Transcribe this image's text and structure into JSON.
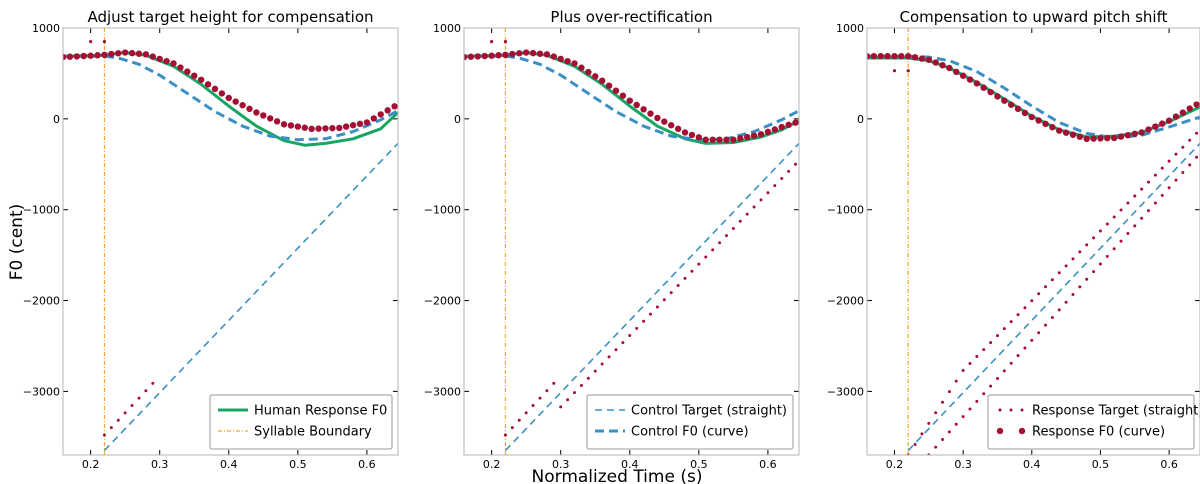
{
  "figure": {
    "xlabel": "Normalized Time (s)",
    "ylabel": "F0 (cent)"
  },
  "colors": {
    "human": "#1aa564",
    "boundary": "#f5a623",
    "control": "#3a8fc4",
    "response": "#a50f33",
    "frame": "#b5b5b5"
  },
  "chart_data": [
    {
      "type": "line",
      "title": "Adjust target height for compensation",
      "xlim": [
        0.16,
        0.645
      ],
      "ylim": [
        -3700,
        1000
      ],
      "xticks": [
        0.2,
        0.3,
        0.4,
        0.5,
        0.6
      ],
      "xtick_labels": [
        "0.2",
        "0.3",
        "0.4",
        "0.5",
        "0.6"
      ],
      "yticks": [
        1000,
        0,
        -1000,
        -2000,
        -3000
      ],
      "ytick_labels": [
        "1000",
        "0",
        "−1000",
        "−2000",
        "−3000"
      ],
      "legend": {
        "position": "bottom-right",
        "entries": [
          "Human Response F0",
          "Syllable Boundary"
        ]
      },
      "boundary_x": 0.22,
      "series": [
        {
          "name": "Human Response F0",
          "style": "human",
          "points": [
            [
              0.16,
              690
            ],
            [
              0.2,
              695
            ],
            [
              0.22,
              700
            ],
            [
              0.25,
              730
            ],
            [
              0.28,
              700
            ],
            [
              0.32,
              580
            ],
            [
              0.36,
              380
            ],
            [
              0.4,
              140
            ],
            [
              0.44,
              -80
            ],
            [
              0.48,
              -240
            ],
            [
              0.51,
              -290
            ],
            [
              0.54,
              -270
            ],
            [
              0.58,
              -220
            ],
            [
              0.62,
              -110
            ],
            [
              0.645,
              70
            ]
          ]
        },
        {
          "name": "Control F0 (curve)",
          "style": "control_curve",
          "points": [
            [
              0.16,
              690
            ],
            [
              0.2,
              690
            ],
            [
              0.22,
              690
            ],
            [
              0.24,
              670
            ],
            [
              0.27,
              600
            ],
            [
              0.3,
              480
            ],
            [
              0.34,
              280
            ],
            [
              0.38,
              80
            ],
            [
              0.42,
              -80
            ],
            [
              0.46,
              -190
            ],
            [
              0.5,
              -230
            ],
            [
              0.54,
              -220
            ],
            [
              0.58,
              -140
            ],
            [
              0.62,
              -10
            ],
            [
              0.645,
              90
            ]
          ]
        },
        {
          "name": "Control Target (straight)",
          "style": "control_straight",
          "points": [
            [
              0.22,
              -3650
            ],
            [
              0.645,
              -270
            ]
          ]
        },
        {
          "name": "Response F0 (curve)",
          "style": "response_curve",
          "points": [
            [
              0.16,
              680
            ],
            [
              0.2,
              695
            ],
            [
              0.22,
              705
            ],
            [
              0.25,
              730
            ],
            [
              0.28,
              710
            ],
            [
              0.32,
              610
            ],
            [
              0.36,
              430
            ],
            [
              0.4,
              230
            ],
            [
              0.44,
              70
            ],
            [
              0.48,
              -60
            ],
            [
              0.52,
              -110
            ],
            [
              0.56,
              -100
            ],
            [
              0.6,
              -40
            ],
            [
              0.645,
              160
            ]
          ]
        },
        {
          "name": "Response Target (straight)",
          "style": "response_straight",
          "points": [
            [
              0.22,
              -3480
            ],
            [
              0.3,
              -2830
            ]
          ]
        },
        {
          "name": "Response Target (straight)",
          "style": "response_onset",
          "points": [
            [
              0.2,
              850
            ],
            [
              0.22,
              850
            ]
          ]
        }
      ]
    },
    {
      "type": "line",
      "title": "Plus over-rectification",
      "xlim": [
        0.16,
        0.645
      ],
      "ylim": [
        -3700,
        1000
      ],
      "xticks": [
        0.2,
        0.3,
        0.4,
        0.5,
        0.6
      ],
      "xtick_labels": [
        "0.2",
        "0.3",
        "0.4",
        "0.5",
        "0.6"
      ],
      "yticks": [
        1000,
        0,
        -1000,
        -2000,
        -3000
      ],
      "ytick_labels": [
        "1000",
        "0",
        "−1000",
        "−2000",
        "−3000"
      ],
      "legend": {
        "position": "bottom-right",
        "entries": [
          "Control Target (straight)",
          "Control F0 (curve)"
        ]
      },
      "boundary_x": 0.22,
      "series": [
        {
          "name": "Human Response F0",
          "style": "human",
          "points": [
            [
              0.16,
              690
            ],
            [
              0.2,
              695
            ],
            [
              0.22,
              700
            ],
            [
              0.25,
              730
            ],
            [
              0.28,
              700
            ],
            [
              0.32,
              580
            ],
            [
              0.36,
              380
            ],
            [
              0.4,
              140
            ],
            [
              0.44,
              -80
            ],
            [
              0.48,
              -220
            ],
            [
              0.51,
              -270
            ],
            [
              0.55,
              -260
            ],
            [
              0.59,
              -200
            ],
            [
              0.62,
              -120
            ],
            [
              0.645,
              -20
            ]
          ]
        },
        {
          "name": "Control F0 (curve)",
          "style": "control_curve",
          "points": [
            [
              0.16,
              690
            ],
            [
              0.2,
              690
            ],
            [
              0.22,
              690
            ],
            [
              0.24,
              670
            ],
            [
              0.27,
              600
            ],
            [
              0.3,
              480
            ],
            [
              0.34,
              280
            ],
            [
              0.38,
              80
            ],
            [
              0.42,
              -80
            ],
            [
              0.46,
              -190
            ],
            [
              0.5,
              -230
            ],
            [
              0.54,
              -220
            ],
            [
              0.58,
              -140
            ],
            [
              0.62,
              -10
            ],
            [
              0.645,
              90
            ]
          ]
        },
        {
          "name": "Control Target (straight)",
          "style": "control_straight",
          "points": [
            [
              0.22,
              -3650
            ],
            [
              0.645,
              -270
            ]
          ]
        },
        {
          "name": "Response F0 (curve)",
          "style": "response_curve",
          "points": [
            [
              0.16,
              680
            ],
            [
              0.2,
              695
            ],
            [
              0.22,
              705
            ],
            [
              0.25,
              730
            ],
            [
              0.28,
              710
            ],
            [
              0.32,
              610
            ],
            [
              0.36,
              420
            ],
            [
              0.4,
              200
            ],
            [
              0.44,
              10
            ],
            [
              0.48,
              -150
            ],
            [
              0.51,
              -230
            ],
            [
              0.55,
              -230
            ],
            [
              0.59,
              -170
            ],
            [
              0.62,
              -90
            ],
            [
              0.645,
              -30
            ]
          ]
        },
        {
          "name": "Response Target (straight)",
          "style": "response_straight",
          "points": [
            [
              0.22,
              -3480
            ],
            [
              0.3,
              -2830
            ]
          ]
        },
        {
          "name": "Response Target (straight)",
          "style": "response_straight",
          "points": [
            [
              0.3,
              -3170
            ],
            [
              0.645,
              -460
            ]
          ]
        },
        {
          "name": "Response Target (straight)",
          "style": "response_onset",
          "points": [
            [
              0.2,
              850
            ],
            [
              0.22,
              850
            ]
          ]
        }
      ]
    },
    {
      "type": "line",
      "title": "Compensation to upward pitch shift",
      "xlim": [
        0.16,
        0.645
      ],
      "ylim": [
        -3700,
        1000
      ],
      "xticks": [
        0.2,
        0.3,
        0.4,
        0.5,
        0.6
      ],
      "xtick_labels": [
        "0.2",
        "0.3",
        "0.4",
        "0.5",
        "0.6"
      ],
      "yticks": [
        1000,
        0,
        -1000,
        -2000,
        -3000
      ],
      "ytick_labels": [
        "1000",
        "0",
        "−1000",
        "−2000",
        "−3000"
      ],
      "legend": {
        "position": "bottom-right",
        "entries": [
          "Response Target (straight)",
          "Response F0 (curve)"
        ]
      },
      "boundary_x": 0.22,
      "series": [
        {
          "name": "Human Response F0",
          "style": "human",
          "points": [
            [
              0.16,
              670
            ],
            [
              0.2,
              670
            ],
            [
              0.22,
              670
            ],
            [
              0.25,
              640
            ],
            [
              0.28,
              560
            ],
            [
              0.32,
              400
            ],
            [
              0.36,
              220
            ],
            [
              0.4,
              30
            ],
            [
              0.44,
              -120
            ],
            [
              0.48,
              -200
            ],
            [
              0.52,
              -190
            ],
            [
              0.56,
              -150
            ],
            [
              0.6,
              -30
            ],
            [
              0.645,
              130
            ]
          ]
        },
        {
          "name": "Control F0 (curve)",
          "style": "control_curve",
          "points": [
            [
              0.16,
              690
            ],
            [
              0.2,
              690
            ],
            [
              0.22,
              690
            ],
            [
              0.25,
              680
            ],
            [
              0.28,
              640
            ],
            [
              0.32,
              520
            ],
            [
              0.36,
              340
            ],
            [
              0.4,
              140
            ],
            [
              0.44,
              -40
            ],
            [
              0.48,
              -160
            ],
            [
              0.52,
              -210
            ],
            [
              0.56,
              -180
            ],
            [
              0.6,
              -90
            ],
            [
              0.645,
              20
            ]
          ]
        },
        {
          "name": "Control Target (straight)",
          "style": "control_straight",
          "points": [
            [
              0.22,
              -3650
            ],
            [
              0.645,
              -270
            ]
          ]
        },
        {
          "name": "Response F0 (curve)",
          "style": "response_curve",
          "points": [
            [
              0.16,
              690
            ],
            [
              0.2,
              690
            ],
            [
              0.22,
              690
            ],
            [
              0.25,
              650
            ],
            [
              0.28,
              560
            ],
            [
              0.32,
              390
            ],
            [
              0.36,
              200
            ],
            [
              0.4,
              20
            ],
            [
              0.44,
              -130
            ],
            [
              0.48,
              -220
            ],
            [
              0.52,
              -210
            ],
            [
              0.56,
              -150
            ],
            [
              0.6,
              -20
            ],
            [
              0.645,
              180
            ]
          ]
        },
        {
          "name": "Response Target (straight)",
          "style": "response_straight",
          "points": [
            [
              0.22,
              -3700
            ],
            [
              0.3,
              -2770
            ],
            [
              0.645,
              -120
            ]
          ]
        },
        {
          "name": "Response Target (straight)",
          "style": "response_straight",
          "points": [
            [
              0.22,
              -3950
            ],
            [
              0.645,
              -380
            ]
          ]
        },
        {
          "name": "Response Target (straight)",
          "style": "response_onset",
          "points": [
            [
              0.2,
              530
            ],
            [
              0.22,
              530
            ]
          ]
        }
      ]
    }
  ]
}
